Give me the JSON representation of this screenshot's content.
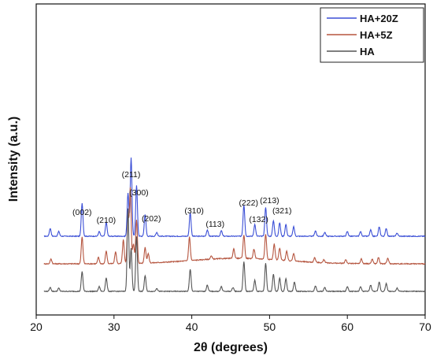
{
  "chart_data": {
    "type": "line",
    "xlabel": "2θ (degrees)",
    "ylabel": "Intensity (a.u.)",
    "xlim": [
      20,
      70
    ],
    "xticks": [
      "20",
      "30",
      "40",
      "50",
      "60",
      "70"
    ],
    "legend_position": "top-right",
    "series": [
      {
        "name": "HA+20Z",
        "color": "#3b4fd6",
        "baseline": 0.7,
        "noise": 0.01,
        "peaks": [
          [
            21.8,
            0.1
          ],
          [
            22.9,
            0.06
          ],
          [
            25.9,
            0.42
          ],
          [
            28.1,
            0.06
          ],
          [
            29.0,
            0.18
          ],
          [
            31.8,
            0.55
          ],
          [
            32.2,
            1.0
          ],
          [
            32.9,
            0.65
          ],
          [
            34.0,
            0.28
          ],
          [
            35.5,
            0.05
          ],
          [
            39.8,
            0.3
          ],
          [
            42.0,
            0.08
          ],
          [
            43.8,
            0.07
          ],
          [
            46.7,
            0.4
          ],
          [
            48.1,
            0.15
          ],
          [
            49.5,
            0.37
          ],
          [
            50.5,
            0.2
          ],
          [
            51.3,
            0.17
          ],
          [
            52.1,
            0.15
          ],
          [
            53.1,
            0.12
          ],
          [
            55.9,
            0.07
          ],
          [
            57.1,
            0.05
          ],
          [
            60.0,
            0.06
          ],
          [
            61.7,
            0.06
          ],
          [
            63.0,
            0.08
          ],
          [
            64.1,
            0.12
          ],
          [
            65.0,
            0.1
          ],
          [
            66.4,
            0.04
          ]
        ],
        "peak_labels": [
          {
            "text": "(002)",
            "x": 25.9,
            "y": 0.97
          },
          {
            "text": "(210)",
            "x": 29.0,
            "y": 0.87
          },
          {
            "text": "(211)",
            "x": 32.2,
            "y": 1.45
          },
          {
            "text": "(300)",
            "x": 33.2,
            "y": 1.22
          },
          {
            "text": "(202)",
            "x": 34.8,
            "y": 0.89
          },
          {
            "text": "(310)",
            "x": 40.3,
            "y": 0.99
          },
          {
            "text": "(113)",
            "x": 43.0,
            "y": 0.82
          },
          {
            "text": "(222)",
            "x": 47.3,
            "y": 1.09
          },
          {
            "text": "(132)",
            "x": 48.6,
            "y": 0.88
          },
          {
            "text": "(213)",
            "x": 50.0,
            "y": 1.12
          },
          {
            "text": "(321)",
            "x": 51.6,
            "y": 0.99
          }
        ]
      },
      {
        "name": "HA+5Z",
        "color": "#b5553f",
        "baseline": 0.35,
        "noise": 0.012,
        "peaks": [
          [
            21.9,
            0.06
          ],
          [
            25.9,
            0.34
          ],
          [
            28.0,
            0.08
          ],
          [
            29.0,
            0.16
          ],
          [
            30.2,
            0.15
          ],
          [
            31.2,
            0.3
          ],
          [
            31.8,
            0.6
          ],
          [
            32.1,
            0.95
          ],
          [
            32.5,
            0.25
          ],
          [
            32.9,
            0.55
          ],
          [
            34.0,
            0.2
          ],
          [
            34.4,
            0.12
          ],
          [
            39.7,
            0.3
          ],
          [
            42.5,
            0.04
          ],
          [
            45.4,
            0.12
          ],
          [
            46.7,
            0.3
          ],
          [
            48.0,
            0.12
          ],
          [
            49.5,
            0.32
          ],
          [
            50.6,
            0.2
          ],
          [
            51.3,
            0.15
          ],
          [
            52.2,
            0.12
          ],
          [
            53.1,
            0.1
          ],
          [
            55.8,
            0.06
          ],
          [
            57.0,
            0.04
          ],
          [
            59.8,
            0.05
          ],
          [
            61.8,
            0.06
          ],
          [
            63.2,
            0.06
          ],
          [
            64.0,
            0.08
          ],
          [
            65.2,
            0.07
          ]
        ],
        "hump": [
          46,
          6,
          0.07
        ]
      },
      {
        "name": "HA",
        "color": "#555555",
        "baseline": 0.0,
        "noise": 0.01,
        "peaks": [
          [
            21.8,
            0.05
          ],
          [
            22.9,
            0.04
          ],
          [
            25.9,
            0.25
          ],
          [
            28.1,
            0.06
          ],
          [
            29.0,
            0.17
          ],
          [
            31.8,
            1.05
          ],
          [
            32.2,
            0.55
          ],
          [
            32.9,
            0.7
          ],
          [
            34.0,
            0.2
          ],
          [
            35.5,
            0.04
          ],
          [
            39.8,
            0.28
          ],
          [
            42.0,
            0.08
          ],
          [
            43.8,
            0.06
          ],
          [
            45.3,
            0.05
          ],
          [
            46.7,
            0.38
          ],
          [
            48.1,
            0.14
          ],
          [
            49.5,
            0.36
          ],
          [
            50.5,
            0.22
          ],
          [
            51.3,
            0.17
          ],
          [
            52.1,
            0.16
          ],
          [
            53.2,
            0.12
          ],
          [
            55.9,
            0.07
          ],
          [
            57.1,
            0.05
          ],
          [
            60.0,
            0.06
          ],
          [
            61.7,
            0.06
          ],
          [
            63.0,
            0.08
          ],
          [
            64.1,
            0.12
          ],
          [
            65.0,
            0.1
          ],
          [
            66.4,
            0.04
          ]
        ]
      }
    ]
  }
}
